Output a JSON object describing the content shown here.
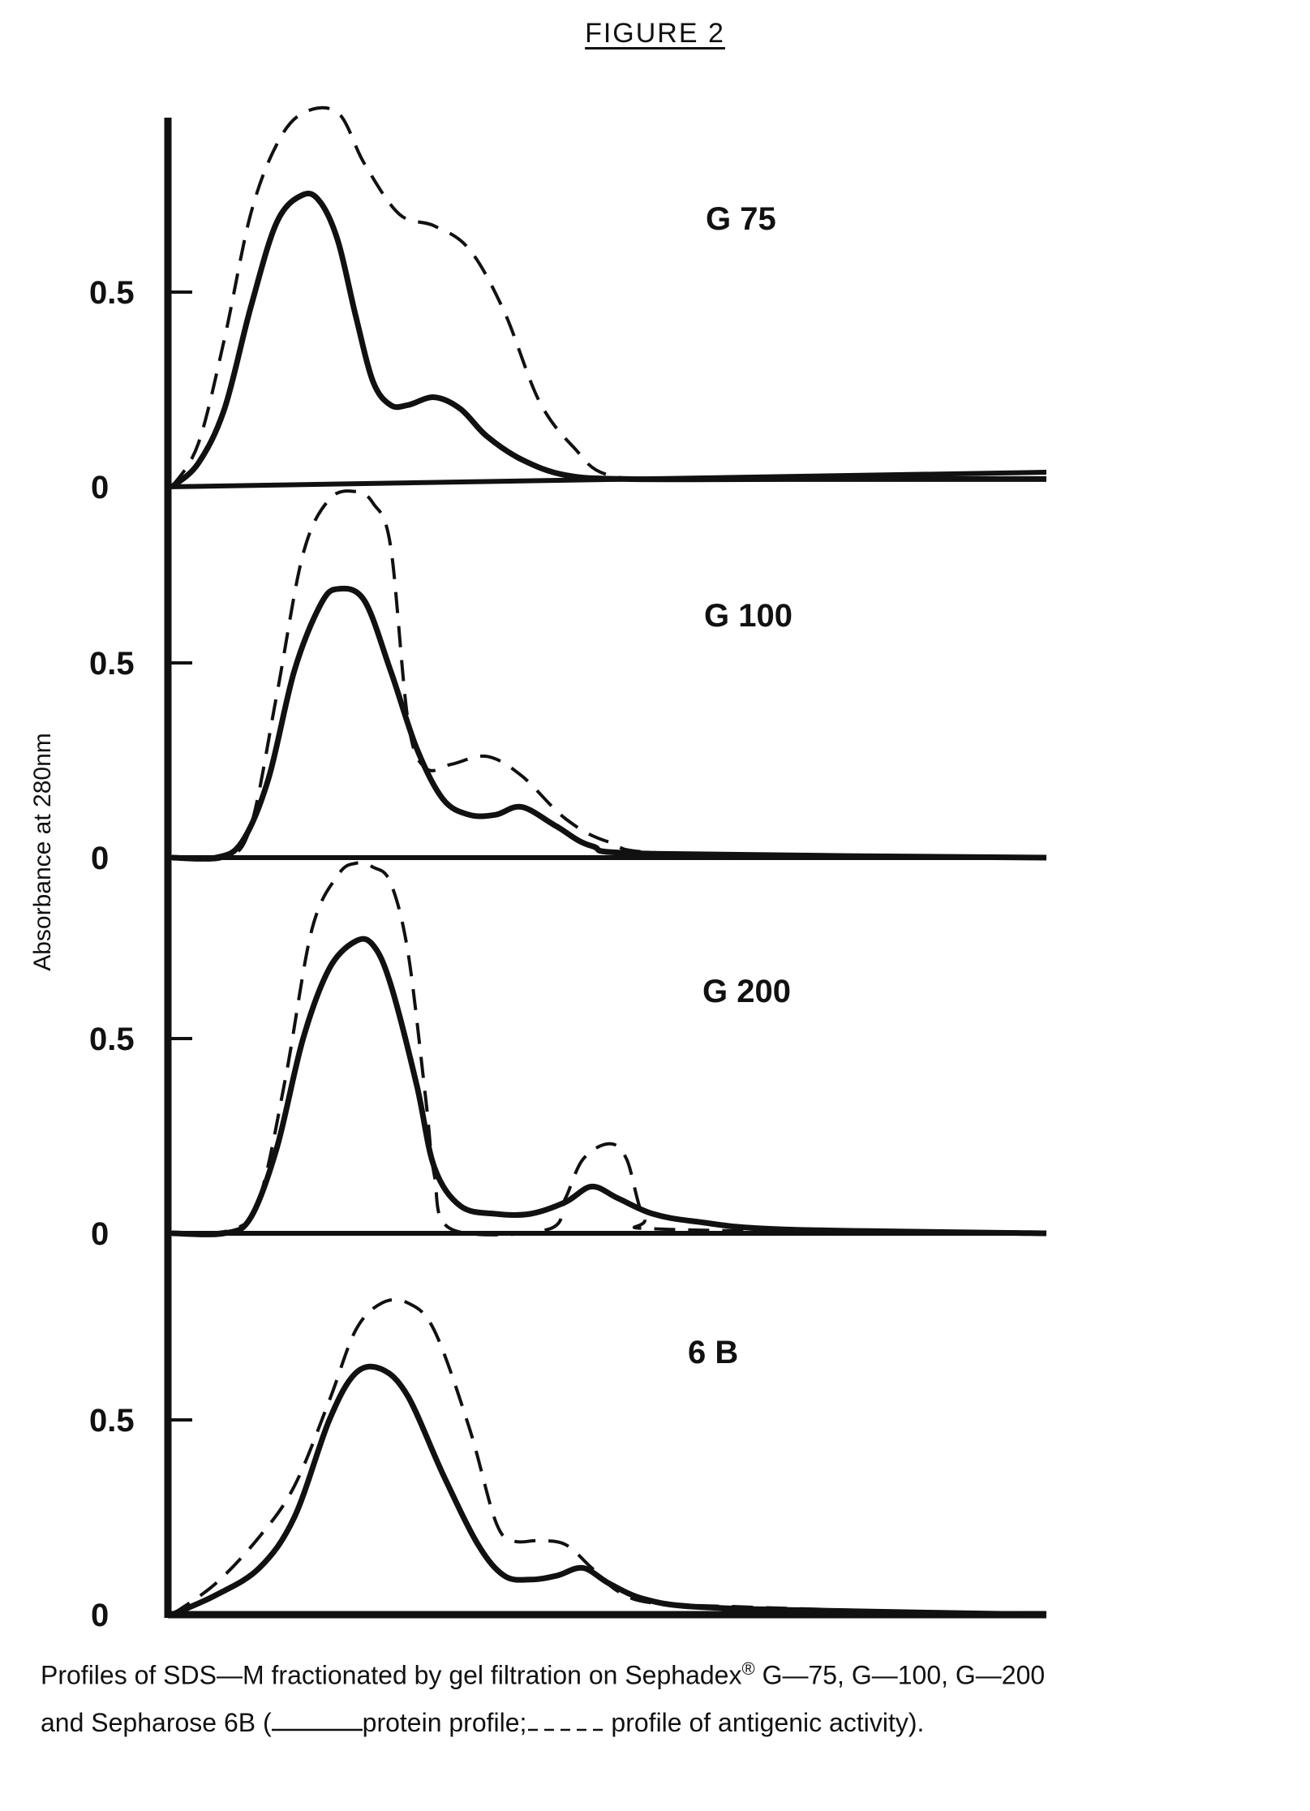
{
  "figure_title": "FIGURE 2",
  "caption": {
    "line1_prefix": "Profiles of SDS—M fractionated by gel filtration on Sephadex",
    "registered_mark": "®",
    "line1_suffix": " G—75, G—100, G—200",
    "line2_prefix": "and Sepharose 6B (",
    "solid_legend": "protein profile;",
    "dashed_legend": "profile of antigenic activity)."
  },
  "chart_data": {
    "type": "line",
    "ylabel": "Absorbance at 280nm",
    "xlabel": "",
    "colors": {
      "line": "#111111",
      "axis": "#111111"
    },
    "x_range": [
      0,
      100
    ],
    "y_range": [
      0,
      0.95
    ],
    "yticks": [
      {
        "value": 0,
        "label": "0"
      },
      {
        "value": 0.5,
        "label": "0.5"
      }
    ],
    "panels": [
      {
        "label": "G 75",
        "series": [
          {
            "style": "solid",
            "points": [
              [
                0,
                0
              ],
              [
                3,
                0.06
              ],
              [
                6,
                0.2
              ],
              [
                9,
                0.46
              ],
              [
                12,
                0.68
              ],
              [
                15,
                0.75
              ],
              [
                17,
                0.73
              ],
              [
                19,
                0.63
              ],
              [
                21,
                0.44
              ],
              [
                23,
                0.27
              ],
              [
                25,
                0.21
              ],
              [
                27,
                0.21
              ],
              [
                30,
                0.23
              ],
              [
                33,
                0.2
              ],
              [
                36,
                0.13
              ],
              [
                40,
                0.07
              ],
              [
                45,
                0.03
              ],
              [
                52,
                0.02
              ],
              [
                70,
                0.02
              ],
              [
                100,
                0.02
              ]
            ]
          },
          {
            "style": "dashed",
            "points": [
              [
                0,
                0
              ],
              [
                3,
                0.11
              ],
              [
                6,
                0.38
              ],
              [
                9,
                0.7
              ],
              [
                12,
                0.88
              ],
              [
                15,
                0.96
              ],
              [
                19,
                0.96
              ],
              [
                22,
                0.83
              ],
              [
                26,
                0.7
              ],
              [
                30,
                0.67
              ],
              [
                34,
                0.61
              ],
              [
                38,
                0.45
              ],
              [
                42,
                0.22
              ],
              [
                46,
                0.1
              ],
              [
                50,
                0.03
              ],
              [
                60,
                0.02
              ],
              [
                100,
                0.02
              ]
            ]
          }
        ]
      },
      {
        "label": "G 100",
        "series": [
          {
            "style": "solid",
            "points": [
              [
                0,
                0
              ],
              [
                5,
                0
              ],
              [
                8,
                0.04
              ],
              [
                11,
                0.2
              ],
              [
                14,
                0.48
              ],
              [
                17,
                0.65
              ],
              [
                19,
                0.69
              ],
              [
                22,
                0.66
              ],
              [
                25,
                0.48
              ],
              [
                28,
                0.28
              ],
              [
                31,
                0.15
              ],
              [
                34,
                0.11
              ],
              [
                37,
                0.11
              ],
              [
                40,
                0.13
              ],
              [
                44,
                0.08
              ],
              [
                48,
                0.03
              ],
              [
                55,
                0.01
              ],
              [
                100,
                0
              ]
            ]
          },
          {
            "style": "dashed",
            "points": [
              [
                0,
                0
              ],
              [
                6,
                0
              ],
              [
                9,
                0.08
              ],
              [
                12,
                0.42
              ],
              [
                15,
                0.78
              ],
              [
                18,
                0.92
              ],
              [
                21,
                0.94
              ],
              [
                23,
                0.91
              ],
              [
                25,
                0.8
              ],
              [
                27,
                0.35
              ],
              [
                29,
                0.23
              ],
              [
                32,
                0.24
              ],
              [
                36,
                0.26
              ],
              [
                40,
                0.21
              ],
              [
                45,
                0.1
              ],
              [
                50,
                0.04
              ],
              [
                58,
                0.01
              ],
              [
                100,
                0
              ]
            ]
          }
        ]
      },
      {
        "label": "G 200",
        "series": [
          {
            "style": "solid",
            "points": [
              [
                0,
                0
              ],
              [
                6,
                0
              ],
              [
                9,
                0.04
              ],
              [
                12,
                0.22
              ],
              [
                15,
                0.5
              ],
              [
                18,
                0.68
              ],
              [
                21,
                0.75
              ],
              [
                23,
                0.74
              ],
              [
                25,
                0.64
              ],
              [
                28,
                0.38
              ],
              [
                30,
                0.17
              ],
              [
                33,
                0.07
              ],
              [
                37,
                0.05
              ],
              [
                41,
                0.05
              ],
              [
                45,
                0.08
              ],
              [
                48,
                0.12
              ],
              [
                51,
                0.09
              ],
              [
                55,
                0.05
              ],
              [
                60,
                0.03
              ],
              [
                70,
                0.01
              ],
              [
                100,
                0
              ]
            ]
          },
          {
            "style": "dashed",
            "points": [
              [
                0,
                0
              ],
              [
                7,
                0.01
              ],
              [
                10,
                0.09
              ],
              [
                13,
                0.4
              ],
              [
                16,
                0.78
              ],
              [
                19,
                0.92
              ],
              [
                21,
                0.95
              ],
              [
                23,
                0.94
              ],
              [
                25,
                0.9
              ],
              [
                27,
                0.72
              ],
              [
                29,
                0.35
              ],
              [
                30,
                0.15
              ],
              [
                32,
                0.01
              ],
              [
                43,
                0.01
              ],
              [
                45,
                0.09
              ],
              [
                47,
                0.19
              ],
              [
                50,
                0.23
              ],
              [
                52,
                0.19
              ],
              [
                54,
                0.04
              ],
              [
                57,
                0.01
              ],
              [
                100,
                0
              ]
            ]
          }
        ]
      },
      {
        "label": "6 B",
        "series": [
          {
            "style": "solid",
            "points": [
              [
                0,
                0
              ],
              [
                5,
                0.05
              ],
              [
                10,
                0.12
              ],
              [
                14,
                0.25
              ],
              [
                18,
                0.5
              ],
              [
                21,
                0.62
              ],
              [
                24,
                0.63
              ],
              [
                27,
                0.56
              ],
              [
                31,
                0.36
              ],
              [
                35,
                0.18
              ],
              [
                38,
                0.1
              ],
              [
                41,
                0.09
              ],
              [
                44,
                0.1
              ],
              [
                47,
                0.12
              ],
              [
                50,
                0.08
              ],
              [
                54,
                0.04
              ],
              [
                60,
                0.02
              ],
              [
                75,
                0.01
              ],
              [
                100,
                0
              ]
            ]
          },
          {
            "style": "dashed",
            "points": [
              [
                0,
                0
              ],
              [
                5,
                0.08
              ],
              [
                10,
                0.2
              ],
              [
                14,
                0.33
              ],
              [
                18,
                0.55
              ],
              [
                21,
                0.73
              ],
              [
                24,
                0.8
              ],
              [
                27,
                0.8
              ],
              [
                30,
                0.73
              ],
              [
                34,
                0.48
              ],
              [
                37,
                0.24
              ],
              [
                39,
                0.19
              ],
              [
                42,
                0.19
              ],
              [
                45,
                0.18
              ],
              [
                48,
                0.12
              ],
              [
                51,
                0.06
              ],
              [
                55,
                0.03
              ],
              [
                65,
                0.02
              ],
              [
                80,
                0.01
              ],
              [
                100,
                0
              ]
            ]
          }
        ]
      }
    ]
  }
}
